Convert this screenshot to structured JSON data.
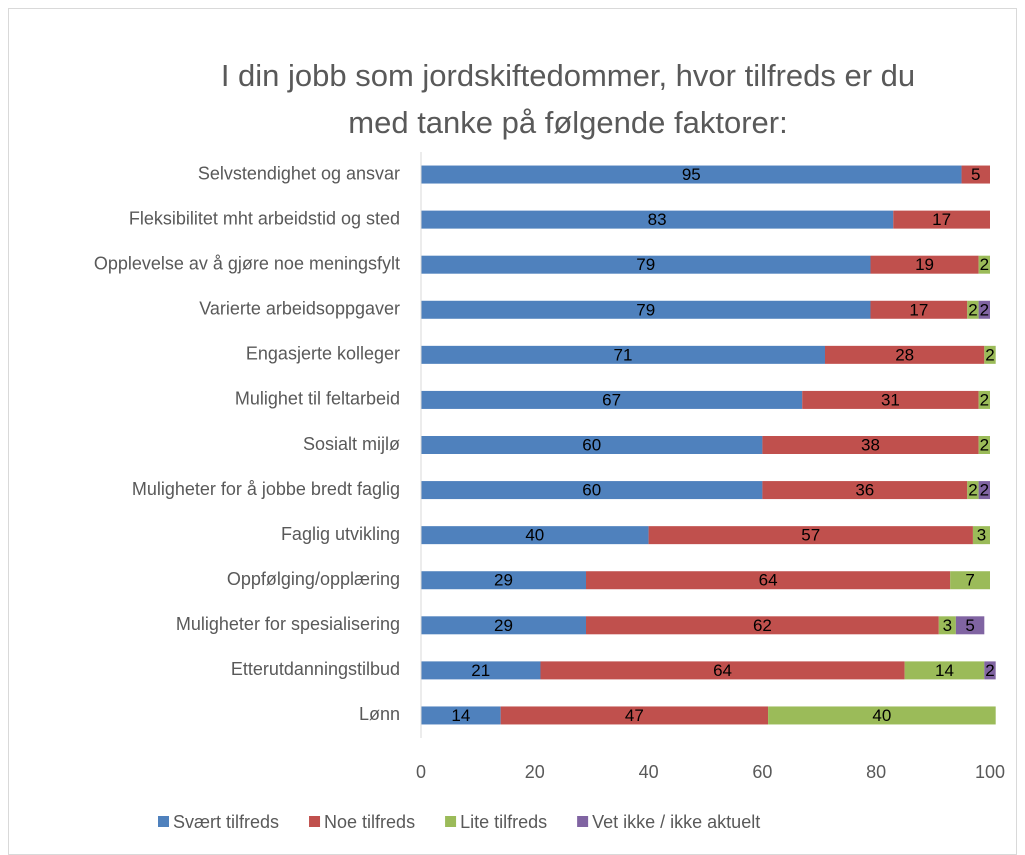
{
  "chart_data": {
    "type": "stacked_barh",
    "title": [
      "I din jobb som jordskiftedommer, hvor tilfreds er du",
      "med tanke på følgende faktorer:"
    ],
    "categories": [
      "Selvstendighet og ansvar",
      "Fleksibilitet mht arbeidstid og sted",
      "Opplevelse av å gjøre noe meningsfylt",
      "Varierte arbeidsoppgaver",
      "Engasjerte kolleger",
      "Mulighet til feltarbeid",
      "Sosialt mijlø",
      "Muligheter for å jobbe bredt faglig",
      "Faglig utvikling",
      "Oppfølging/opplæring",
      "Muligheter for spesialisering",
      "Etterutdanningstilbud",
      "Lønn"
    ],
    "series": [
      {
        "name": "Svært tilfreds",
        "color": "#4f81bd",
        "values": [
          95,
          83,
          79,
          79,
          71,
          67,
          60,
          60,
          40,
          29,
          29,
          21,
          14
        ]
      },
      {
        "name": "Noe tilfreds",
        "color": "#c0504d",
        "values": [
          5,
          17,
          19,
          17,
          28,
          31,
          38,
          36,
          57,
          64,
          62,
          64,
          47
        ]
      },
      {
        "name": "Lite tilfreds",
        "color": "#9bbb59",
        "values": [
          null,
          null,
          2,
          2,
          2,
          2,
          2,
          2,
          3,
          7,
          3,
          14,
          40
        ]
      },
      {
        "name": "Vet ikke / ikke aktuelt",
        "color": "#8064a2",
        "values": [
          null,
          null,
          null,
          2,
          null,
          null,
          null,
          2,
          null,
          null,
          5,
          2,
          null
        ]
      }
    ],
    "xlim": [
      0,
      100
    ],
    "xticks": [
      0,
      20,
      40,
      60,
      80,
      100
    ],
    "legend": "bottom"
  }
}
